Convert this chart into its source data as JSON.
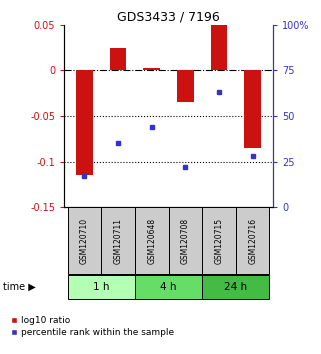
{
  "title": "GDS3433 / 7196",
  "samples": [
    "GSM120710",
    "GSM120711",
    "GSM120648",
    "GSM120708",
    "GSM120715",
    "GSM120716"
  ],
  "groups": [
    {
      "label": "1 h",
      "indices": [
        0,
        1
      ],
      "color": "#b3ffb3"
    },
    {
      "label": "4 h",
      "indices": [
        2,
        3
      ],
      "color": "#66dd66"
    },
    {
      "label": "24 h",
      "indices": [
        4,
        5
      ],
      "color": "#44bb44"
    }
  ],
  "log10_ratio": [
    -0.115,
    0.025,
    0.003,
    -0.035,
    0.05,
    -0.085
  ],
  "percentile_rank": [
    17,
    35,
    44,
    22,
    63,
    28
  ],
  "ylim_left": [
    -0.15,
    0.05
  ],
  "ylim_right": [
    0,
    100
  ],
  "bar_color": "#cc1111",
  "dot_color": "#3333cc",
  "bar_width": 0.5,
  "left_yticks": [
    0.05,
    0,
    -0.05,
    -0.1,
    -0.15
  ],
  "left_yticklabels": [
    "0.05",
    "0",
    "-0.05",
    "-0.1",
    "-0.15"
  ],
  "right_yticks": [
    0,
    25,
    50,
    75,
    100
  ],
  "right_yticklabels": [
    "0",
    "25",
    "50",
    "75",
    "100%"
  ],
  "legend_labels": [
    "log10 ratio",
    "percentile rank within the sample"
  ],
  "legend_colors": [
    "#cc1111",
    "#3333cc"
  ],
  "sample_box_color": "#cccccc",
  "figsize": [
    3.21,
    3.54
  ],
  "dpi": 100
}
